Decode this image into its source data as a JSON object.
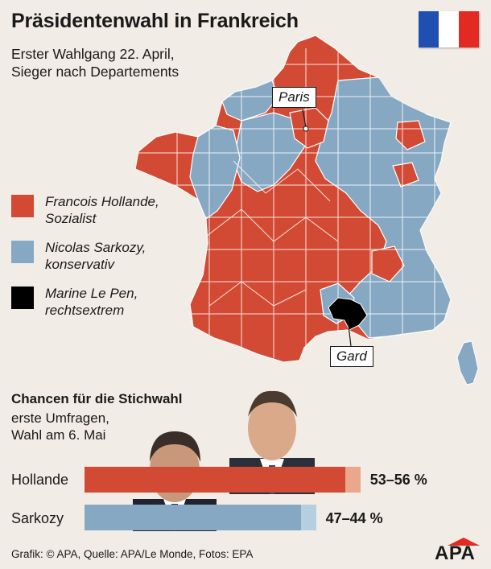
{
  "header": {
    "title": "Präsidentenwahl in Frankreich",
    "subtitle_line1": "Erster Wahlgang 22. April,",
    "subtitle_line2": "Sieger nach Departements"
  },
  "flag": {
    "name": "french-flag",
    "colors": [
      "#1f4fb0",
      "#ffffff",
      "#e32a22"
    ]
  },
  "colors": {
    "hollande": "#d24a34",
    "sarkozy": "#87a8c2",
    "lepen": "#000000",
    "hollande_light": "#e9a88c",
    "sarkozy_light": "#b6cfe0",
    "background": "#f1ece6"
  },
  "legend": [
    {
      "line1": "Francois Hollande,",
      "line2": "Sozialist",
      "color": "#d24a34"
    },
    {
      "line1": "Nicolas Sarkozy,",
      "line2": "konservativ",
      "color": "#87a8c2"
    },
    {
      "line1": "Marine Le Pen,",
      "line2": "rechtsextrem",
      "color": "#000000"
    }
  ],
  "map": {
    "callouts": {
      "paris": "Paris",
      "gard": "Gard"
    }
  },
  "chances": {
    "title": "Chancen für die Stichwahl",
    "sub_line1": "erste Umfragen,",
    "sub_line2": "Wahl am 6. Mai",
    "bars": [
      {
        "name": "Hollande",
        "range": "53–56 %",
        "min_pct": 53,
        "max_pct": 56
      },
      {
        "name": "Sarkozy",
        "range": "47–44 %",
        "min_pct": 44,
        "max_pct": 47
      }
    ]
  },
  "footer": {
    "credit": "Grafik: © APA, Quelle: APA/Le Monde, Fotos: EPA",
    "logo": "APA"
  }
}
